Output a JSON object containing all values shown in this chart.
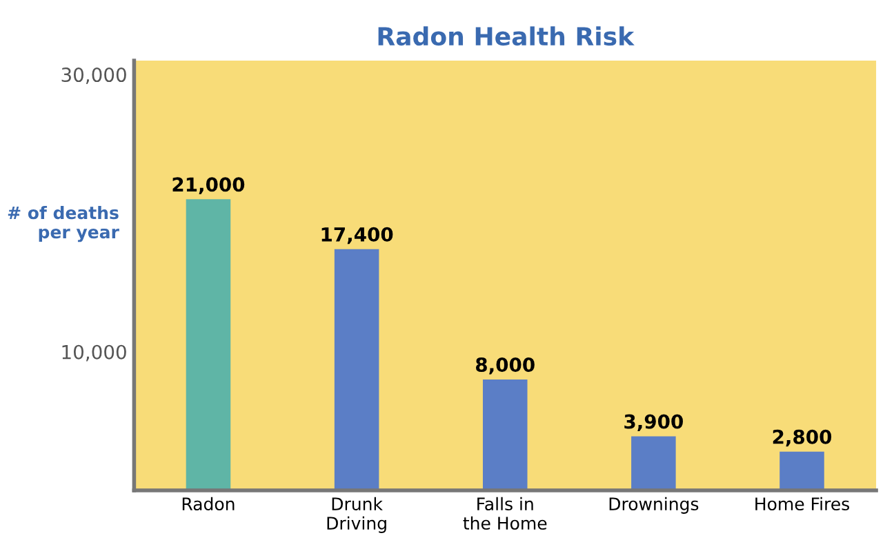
{
  "chart_data": {
    "type": "bar",
    "title": "Radon Health Risk",
    "ylabel": "# of deaths\nper year",
    "categories": [
      "Radon",
      "Drunk\nDriving",
      "Falls in\nthe Home",
      "Drownings",
      "Home Fires"
    ],
    "values": [
      21000,
      17400,
      8000,
      3900,
      2800
    ],
    "colors": [
      "#5fb5a6",
      "#5b7ec6",
      "#5b7ec6",
      "#5b7ec6",
      "#5b7ec6"
    ],
    "data_labels": true,
    "value_labels": [
      "21,000",
      "17,400",
      "8,000",
      "3,900",
      "2,800"
    ],
    "ylim": [
      0,
      31000
    ],
    "yticks": [
      {
        "value": 10000,
        "label": "10,000"
      },
      {
        "value": 30000,
        "label": "30,000"
      }
    ],
    "grid": false
  }
}
